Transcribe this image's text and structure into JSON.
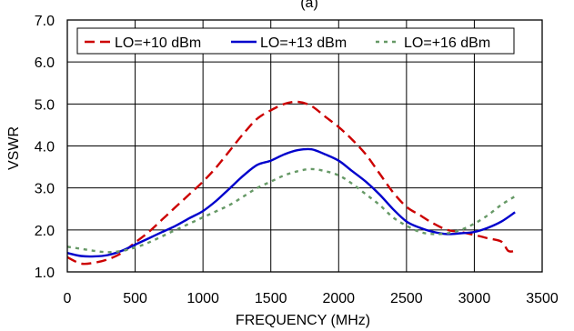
{
  "chart_data": {
    "type": "line",
    "title": "",
    "title_fragment": "(a)",
    "xlabel": "FREQUENCY (MHz)",
    "ylabel": "VSWR",
    "xlim": [
      0,
      3500
    ],
    "ylim": [
      1.0,
      7.0
    ],
    "x_ticks": [
      "0",
      "500",
      "1000",
      "1500",
      "2000",
      "2500",
      "3000",
      "3500"
    ],
    "y_ticks": [
      "1.0",
      "2.0",
      "3.0",
      "4.0",
      "5.0",
      "6.0",
      "7.0"
    ],
    "grid": true,
    "legend_position": "top",
    "series": [
      {
        "name": "LO=+10 dBm",
        "color": "#cc0000",
        "style": "dashed",
        "points": [
          [
            0,
            1.35
          ],
          [
            100,
            1.2
          ],
          [
            200,
            1.22
          ],
          [
            300,
            1.3
          ],
          [
            400,
            1.45
          ],
          [
            500,
            1.7
          ],
          [
            600,
            1.95
          ],
          [
            700,
            2.25
          ],
          [
            800,
            2.55
          ],
          [
            900,
            2.85
          ],
          [
            1000,
            3.15
          ],
          [
            1100,
            3.5
          ],
          [
            1200,
            3.9
          ],
          [
            1300,
            4.3
          ],
          [
            1400,
            4.65
          ],
          [
            1500,
            4.85
          ],
          [
            1600,
            5.0
          ],
          [
            1700,
            5.05
          ],
          [
            1800,
            4.95
          ],
          [
            1900,
            4.7
          ],
          [
            2000,
            4.45
          ],
          [
            2100,
            4.15
          ],
          [
            2200,
            3.8
          ],
          [
            2300,
            3.35
          ],
          [
            2400,
            2.9
          ],
          [
            2500,
            2.55
          ],
          [
            2600,
            2.35
          ],
          [
            2700,
            2.15
          ],
          [
            2800,
            2.0
          ],
          [
            2900,
            1.95
          ],
          [
            3000,
            1.88
          ],
          [
            3100,
            1.8
          ],
          [
            3200,
            1.72
          ],
          [
            3250,
            1.5
          ],
          [
            3300,
            1.5
          ]
        ]
      },
      {
        "name": "LO=+13 dBm",
        "color": "#0000cc",
        "style": "solid",
        "points": [
          [
            0,
            1.45
          ],
          [
            100,
            1.38
          ],
          [
            200,
            1.37
          ],
          [
            300,
            1.4
          ],
          [
            400,
            1.5
          ],
          [
            500,
            1.65
          ],
          [
            600,
            1.8
          ],
          [
            700,
            1.95
          ],
          [
            800,
            2.1
          ],
          [
            900,
            2.28
          ],
          [
            1000,
            2.45
          ],
          [
            1100,
            2.7
          ],
          [
            1200,
            3.0
          ],
          [
            1300,
            3.3
          ],
          [
            1400,
            3.55
          ],
          [
            1500,
            3.65
          ],
          [
            1600,
            3.8
          ],
          [
            1700,
            3.9
          ],
          [
            1800,
            3.92
          ],
          [
            1900,
            3.8
          ],
          [
            2000,
            3.65
          ],
          [
            2100,
            3.4
          ],
          [
            2200,
            3.15
          ],
          [
            2300,
            2.85
          ],
          [
            2400,
            2.5
          ],
          [
            2500,
            2.2
          ],
          [
            2600,
            2.05
          ],
          [
            2700,
            1.95
          ],
          [
            2800,
            1.9
          ],
          [
            2900,
            1.92
          ],
          [
            3000,
            1.95
          ],
          [
            3100,
            2.05
          ],
          [
            3200,
            2.2
          ],
          [
            3300,
            2.42
          ]
        ]
      },
      {
        "name": "LO=+16 dBm",
        "color": "#669966",
        "style": "dotted",
        "points": [
          [
            0,
            1.6
          ],
          [
            100,
            1.55
          ],
          [
            200,
            1.5
          ],
          [
            300,
            1.47
          ],
          [
            400,
            1.5
          ],
          [
            500,
            1.58
          ],
          [
            600,
            1.7
          ],
          [
            700,
            1.85
          ],
          [
            800,
            2.0
          ],
          [
            900,
            2.15
          ],
          [
            1000,
            2.3
          ],
          [
            1100,
            2.45
          ],
          [
            1200,
            2.6
          ],
          [
            1300,
            2.8
          ],
          [
            1400,
            3.0
          ],
          [
            1500,
            3.15
          ],
          [
            1600,
            3.3
          ],
          [
            1700,
            3.4
          ],
          [
            1800,
            3.45
          ],
          [
            1900,
            3.4
          ],
          [
            2000,
            3.3
          ],
          [
            2100,
            3.1
          ],
          [
            2200,
            2.85
          ],
          [
            2300,
            2.6
          ],
          [
            2400,
            2.3
          ],
          [
            2500,
            2.1
          ],
          [
            2600,
            1.95
          ],
          [
            2700,
            1.9
          ],
          [
            2800,
            1.92
          ],
          [
            2900,
            2.0
          ],
          [
            3000,
            2.15
          ],
          [
            3100,
            2.35
          ],
          [
            3200,
            2.6
          ],
          [
            3300,
            2.8
          ]
        ]
      }
    ]
  }
}
